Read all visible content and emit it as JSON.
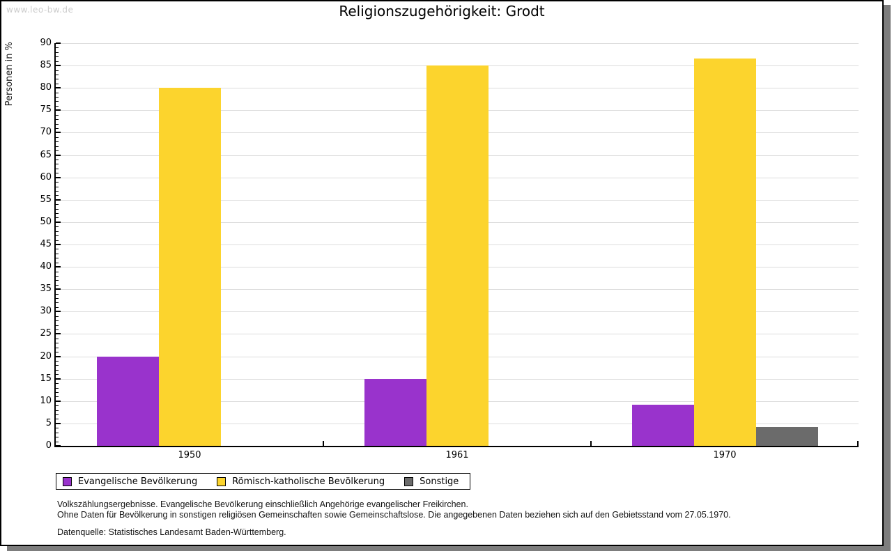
{
  "watermark": "www.leo-bw.de",
  "title": "Religionszugehörigkeit: Grodt",
  "chart_data": {
    "type": "bar",
    "title": "Religionszugehörigkeit: Grodt",
    "xlabel": "",
    "ylabel": "Personen in %",
    "ylim": [
      0,
      90
    ],
    "ytick_major_step": 5,
    "ytick_minor_step": 1,
    "grid": true,
    "legend_position": "bottom-left",
    "categories": [
      "1950",
      "1961",
      "1970"
    ],
    "series": [
      {
        "name": "Evangelische Bevölkerung",
        "color": "#9933cc",
        "values": [
          20,
          15,
          9.2
        ]
      },
      {
        "name": "Römisch-katholische Bevölkerung",
        "color": "#fcd42d",
        "values": [
          80,
          85,
          86.6
        ]
      },
      {
        "name": "Sonstige",
        "color": "#6b6b6b",
        "values": [
          null,
          null,
          4.2
        ]
      }
    ]
  },
  "footnotes": {
    "line1": "Volkszählungsergebnisse. Evangelische Bevölkerung einschließlich Angehörige evangelischer Freikirchen.",
    "line2": "Ohne Daten für Bevölkerung in sonstigen religiösen Gemeinschaften sowie Gemeinschaftslose. Die angegebenen Daten beziehen sich auf den Gebietsstand vom 27.05.1970.",
    "source": "Datenquelle: Statistisches Landesamt Baden-Württemberg."
  },
  "colors": {
    "evangelisch": "#9933cc",
    "katholisch": "#fcd42d",
    "sonstige": "#6b6b6b",
    "gridline": "#dcdcdc",
    "shadow": "#7d7d7d",
    "watermark": "#cccccc"
  }
}
